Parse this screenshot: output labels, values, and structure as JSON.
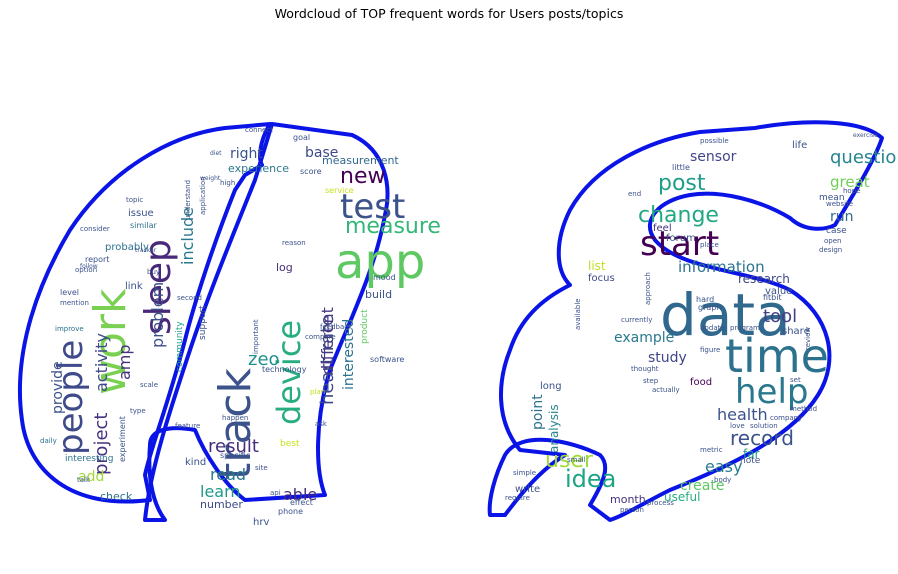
{
  "title": "Wordcloud of TOP frequent words for Users posts/topics",
  "colors": {
    "outline": "#0a14e6",
    "background": "#ffffff",
    "palette": [
      "#440154",
      "#3b528b",
      "#21918c",
      "#5ec962",
      "#c8e020",
      "#482878",
      "#2c728e",
      "#27ad81"
    ]
  },
  "words": [
    {
      "text": "data",
      "c": "#31688e"
    },
    {
      "text": "time",
      "c": "#2c728e"
    },
    {
      "text": "app",
      "c": "#5ec962"
    },
    {
      "text": "track",
      "c": "#3b528b"
    },
    {
      "text": "work",
      "c": "#7ad151"
    },
    {
      "text": "sleep",
      "c": "#482878"
    },
    {
      "text": "device",
      "c": "#27ad81"
    },
    {
      "text": "people",
      "c": "#3e4a89"
    },
    {
      "text": "start",
      "c": "#440154"
    },
    {
      "text": "help",
      "c": "#2a788e"
    },
    {
      "text": "test",
      "c": "#3b528b"
    },
    {
      "text": "measure",
      "c": "#35b779"
    },
    {
      "text": "heart rate",
      "c": "#3e4989"
    },
    {
      "text": "idea",
      "c": "#20a486"
    },
    {
      "text": "change",
      "c": "#22a884"
    },
    {
      "text": "post",
      "c": "#1f9e89"
    },
    {
      "text": "user",
      "c": "#a0da39"
    },
    {
      "text": "record",
      "c": "#3b528b"
    },
    {
      "text": "question",
      "c": "#25858e"
    },
    {
      "text": "new",
      "c": "#440154"
    },
    {
      "text": "result",
      "c": "#472d7b"
    },
    {
      "text": "project",
      "c": "#46327e"
    },
    {
      "text": "include",
      "c": "#2a788e"
    },
    {
      "text": "activity",
      "c": "#3e4a89"
    },
    {
      "text": "different",
      "c": "#453781"
    },
    {
      "text": "information",
      "c": "#2c728e"
    },
    {
      "text": "tool",
      "c": "#433e85"
    },
    {
      "text": "zeo",
      "c": "#21918c"
    },
    {
      "text": "problem",
      "c": "#3b528b"
    },
    {
      "text": "interested",
      "c": "#2c728e"
    },
    {
      "text": "easy",
      "c": "#287c8e"
    },
    {
      "text": "able",
      "c": "#472d7b"
    },
    {
      "text": "read",
      "c": "#2a788e"
    },
    {
      "text": "learn",
      "c": "#1f9a8a"
    },
    {
      "text": "great",
      "c": "#70cf57"
    },
    {
      "text": "health",
      "c": "#3b528b"
    },
    {
      "text": "example",
      "c": "#2a788e"
    },
    {
      "text": "right",
      "c": "#3b528b"
    },
    {
      "text": "base",
      "c": "#3e4989"
    },
    {
      "text": "sensor",
      "c": "#404688"
    },
    {
      "text": "create",
      "c": "#5ec962"
    },
    {
      "text": "study",
      "c": "#414487"
    },
    {
      "text": "amp",
      "c": "#46327e"
    },
    {
      "text": "add",
      "c": "#a0da39"
    },
    {
      "text": "provide",
      "c": "#3b528b"
    },
    {
      "text": "run",
      "c": "#31688e"
    },
    {
      "text": "point",
      "c": "#2c728e"
    },
    {
      "text": "useful",
      "c": "#27ad81"
    },
    {
      "text": "analysis",
      "c": "#26828e"
    },
    {
      "text": "list",
      "c": "#c2df23"
    },
    {
      "text": "far",
      "c": "#1f9e89"
    },
    {
      "text": "research",
      "c": "#3e4989"
    },
    {
      "text": "log",
      "c": "#472d7b"
    },
    {
      "text": "build",
      "c": "#3b528b"
    },
    {
      "text": "experience",
      "c": "#2a788e"
    },
    {
      "text": "measurement",
      "c": "#31688e"
    },
    {
      "text": "number",
      "c": "#3e4989"
    },
    {
      "text": "month",
      "c": "#46327e"
    },
    {
      "text": "check",
      "c": "#2c728e"
    },
    {
      "text": "write",
      "c": "#3b528b"
    },
    {
      "text": "focus",
      "c": "#3e4989"
    },
    {
      "text": "value",
      "c": "#3b528b"
    },
    {
      "text": "share",
      "c": "#3b528b"
    },
    {
      "text": "long",
      "c": "#3b528b"
    },
    {
      "text": "food",
      "c": "#440154"
    },
    {
      "text": "feel",
      "c": "#46327e"
    },
    {
      "text": "forum",
      "c": "#3b528b"
    },
    {
      "text": "hrv",
      "c": "#3b528b"
    },
    {
      "text": "kind",
      "c": "#3b528b"
    },
    {
      "text": "probably",
      "c": "#2c728e"
    },
    {
      "text": "support",
      "c": "#3b528b"
    },
    {
      "text": "link",
      "c": "#3b528b"
    },
    {
      "text": "issue",
      "c": "#3b528b"
    },
    {
      "text": "life",
      "c": "#3b528b"
    },
    {
      "text": "mean",
      "c": "#3b528b"
    },
    {
      "text": "case",
      "c": "#3b528b"
    },
    {
      "text": "note",
      "c": "#3b528b"
    },
    {
      "text": "technology",
      "c": "#3b528b"
    },
    {
      "text": "community",
      "c": "#1f9e89"
    },
    {
      "text": "interesting",
      "c": "#2c728e"
    },
    {
      "text": "product",
      "c": "#5ec962"
    },
    {
      "text": "best",
      "c": "#c8e020"
    },
    {
      "text": "level",
      "c": "#3b528b"
    },
    {
      "text": "little",
      "c": "#3b528b"
    },
    {
      "text": "fitbit",
      "c": "#3b528b"
    },
    {
      "text": "hard",
      "c": "#3b528b"
    },
    {
      "text": "graph",
      "c": "#3b528b"
    },
    {
      "text": "mood",
      "c": "#3b528b"
    },
    {
      "text": "similar",
      "c": "#2c728e"
    },
    {
      "text": "report",
      "c": "#3b528b"
    },
    {
      "text": "daily",
      "c": "#2c728e"
    },
    {
      "text": "improve",
      "c": "#2c728e"
    },
    {
      "text": "mention",
      "c": "#3b528b"
    },
    {
      "text": "option",
      "c": "#3b528b"
    },
    {
      "text": "topic",
      "c": "#3b528b"
    },
    {
      "text": "high",
      "c": "#3b528b"
    },
    {
      "text": "diet",
      "c": "#3b528b"
    },
    {
      "text": "goal",
      "c": "#3b528b"
    },
    {
      "text": "score",
      "c": "#3b528b"
    },
    {
      "text": "service",
      "c": "#c8e020"
    },
    {
      "text": "software",
      "c": "#3b528b"
    },
    {
      "text": "phone",
      "c": "#3b528b"
    },
    {
      "text": "site",
      "c": "#3b528b"
    },
    {
      "text": "api",
      "c": "#3b528b"
    },
    {
      "text": "effect",
      "c": "#3b528b"
    },
    {
      "text": "specific",
      "c": "#3b528b"
    },
    {
      "text": "compare",
      "c": "#3b528b"
    },
    {
      "text": "feedback",
      "c": "#3b528b"
    },
    {
      "text": "ask",
      "c": "#3b528b"
    },
    {
      "text": "plan",
      "c": "#c8e020"
    },
    {
      "text": "important",
      "c": "#3b528b"
    },
    {
      "text": "reason",
      "c": "#3b528b"
    },
    {
      "text": "buy",
      "c": "#3b528b"
    },
    {
      "text": "scale",
      "c": "#3b528b"
    },
    {
      "text": "type",
      "c": "#3b528b"
    },
    {
      "text": "feature",
      "c": "#3b528b"
    },
    {
      "text": "experiment",
      "c": "#3b528b"
    },
    {
      "text": "hope",
      "c": "#3b528b"
    },
    {
      "text": "open",
      "c": "#3b528b"
    },
    {
      "text": "design",
      "c": "#3b528b"
    },
    {
      "text": "exercise",
      "c": "#3b528b"
    },
    {
      "text": "website",
      "c": "#3b528b"
    },
    {
      "text": "place",
      "c": "#3b528b"
    },
    {
      "text": "program",
      "c": "#3b528b"
    },
    {
      "text": "update",
      "c": "#3b528b"
    },
    {
      "text": "figure",
      "c": "#3b528b"
    },
    {
      "text": "thought",
      "c": "#3b528b"
    },
    {
      "text": "actually",
      "c": "#3b528b"
    },
    {
      "text": "set",
      "c": "#3b528b"
    },
    {
      "text": "review",
      "c": "#3b528b"
    },
    {
      "text": "method",
      "c": "#3b528b"
    },
    {
      "text": "company",
      "c": "#3b528b"
    },
    {
      "text": "love",
      "c": "#3b528b"
    },
    {
      "text": "solution",
      "c": "#3b528b"
    },
    {
      "text": "metric",
      "c": "#3b528b"
    },
    {
      "text": "body",
      "c": "#3b528b"
    },
    {
      "text": "process",
      "c": "#3b528b"
    },
    {
      "text": "person",
      "c": "#3b528b"
    },
    {
      "text": "require",
      "c": "#3b528b"
    },
    {
      "text": "simple",
      "c": "#3b528b"
    },
    {
      "text": "small",
      "c": "#3b528b"
    },
    {
      "text": "available",
      "c": "#3b528b"
    },
    {
      "text": "currently",
      "c": "#3b528b"
    },
    {
      "text": "approach",
      "c": "#3b528b"
    },
    {
      "text": "step",
      "c": "#3b528b"
    },
    {
      "text": "end",
      "c": "#3b528b"
    },
    {
      "text": "possible",
      "c": "#3b528b"
    },
    {
      "text": "connect",
      "c": "#3b528b"
    },
    {
      "text": "consider",
      "c": "#3b528b"
    },
    {
      "text": "understand",
      "c": "#3b528b"
    },
    {
      "text": "application",
      "c": "#3b528b"
    },
    {
      "text": "happen",
      "c": "#3b528b"
    },
    {
      "text": "second",
      "c": "#3b528b"
    },
    {
      "text": "follow",
      "c": "#3b528b"
    },
    {
      "text": "tracker",
      "c": "#3b528b"
    },
    {
      "text": "talk",
      "c": "#3b528b"
    },
    {
      "text": "weight",
      "c": "#3b528b"
    }
  ]
}
